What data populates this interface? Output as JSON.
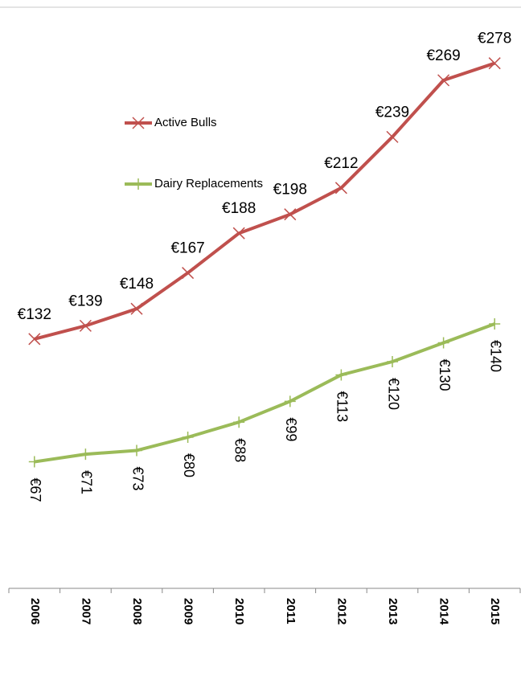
{
  "chart_data": {
    "type": "line",
    "categories": [
      "2006",
      "2007",
      "2008",
      "2009",
      "2010",
      "2011",
      "2012",
      "2013",
      "2014",
      "2015"
    ],
    "series": [
      {
        "name": "Active Bulls",
        "color": "#c0504d",
        "marker": "x",
        "values": [
          132,
          139,
          148,
          167,
          188,
          198,
          212,
          239,
          269,
          278
        ],
        "value_labels": [
          "€132",
          "€139",
          "€148",
          "€167",
          "€188",
          "€198",
          "€212",
          "€239",
          "€269",
          "€278"
        ]
      },
      {
        "name": "Dairy Replacements",
        "color": "#9bbb59",
        "marker": "+",
        "values": [
          67,
          71,
          73,
          80,
          88,
          99,
          113,
          120,
          130,
          140
        ],
        "value_labels": [
          "€67",
          "€71",
          "€73",
          "€80",
          "€88",
          "€99",
          "€113",
          "€120",
          "€130",
          "€140"
        ]
      }
    ],
    "ylim": [
      0,
      300
    ],
    "grid": false,
    "legend": "upper-left"
  }
}
